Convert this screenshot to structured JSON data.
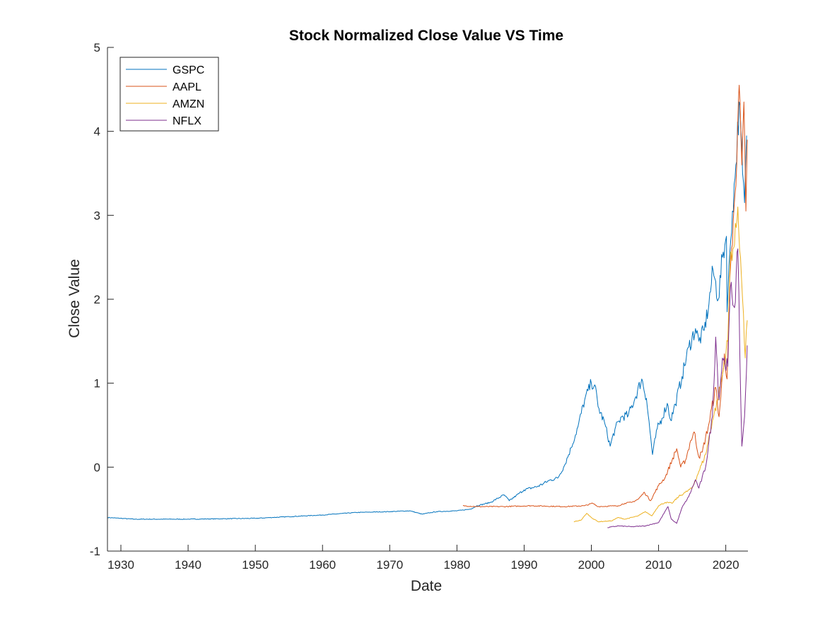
{
  "chart_data": {
    "type": "line",
    "title": "Stock Normalized Close Value VS Time",
    "xlabel": "Date",
    "ylabel": "Close Value",
    "xlim": [
      1928,
      2023.3
    ],
    "ylim": [
      -1,
      5
    ],
    "x_ticks": [
      1930,
      1940,
      1950,
      1960,
      1970,
      1980,
      1990,
      2000,
      2010,
      2020
    ],
    "y_ticks": [
      -1,
      0,
      1,
      2,
      3,
      4,
      5
    ],
    "grid": false,
    "legend_position": "top-left",
    "series": [
      {
        "name": "GSPC",
        "color": "#0072BD",
        "points": [
          [
            1928.0,
            -0.6
          ],
          [
            1932,
            -0.62
          ],
          [
            1940,
            -0.62
          ],
          [
            1950,
            -0.61
          ],
          [
            1955,
            -0.59
          ],
          [
            1960,
            -0.57
          ],
          [
            1965,
            -0.54
          ],
          [
            1970,
            -0.53
          ],
          [
            1973,
            -0.52
          ],
          [
            1974.8,
            -0.56
          ],
          [
            1977,
            -0.53
          ],
          [
            1980,
            -0.52
          ],
          [
            1982,
            -0.5
          ],
          [
            1983,
            -0.46
          ],
          [
            1985,
            -0.42
          ],
          [
            1987,
            -0.33
          ],
          [
            1987.8,
            -0.4
          ],
          [
            1990,
            -0.27
          ],
          [
            1992,
            -0.23
          ],
          [
            1994,
            -0.15
          ],
          [
            1995,
            -0.13
          ],
          [
            1996,
            0.02
          ],
          [
            1997,
            0.23
          ],
          [
            1998,
            0.48
          ],
          [
            1999,
            0.8
          ],
          [
            2000,
            1.0
          ],
          [
            2000.5,
            0.98
          ],
          [
            2001,
            0.72
          ],
          [
            2002,
            0.52
          ],
          [
            2002.8,
            0.25
          ],
          [
            2003.5,
            0.45
          ],
          [
            2004.5,
            0.6
          ],
          [
            2005.5,
            0.62
          ],
          [
            2006.5,
            0.82
          ],
          [
            2007.5,
            1.05
          ],
          [
            2008.2,
            0.82
          ],
          [
            2009.1,
            0.15
          ],
          [
            2009.8,
            0.46
          ],
          [
            2010.5,
            0.58
          ],
          [
            2011.3,
            0.76
          ],
          [
            2011.8,
            0.56
          ],
          [
            2012.5,
            0.75
          ],
          [
            2013.5,
            1.08
          ],
          [
            2014.5,
            1.43
          ],
          [
            2015.5,
            1.65
          ],
          [
            2016,
            1.5
          ],
          [
            2016.8,
            1.63
          ],
          [
            2017.5,
            1.95
          ],
          [
            2018.1,
            2.35
          ],
          [
            2018.9,
            2.0
          ],
          [
            2019.5,
            2.5
          ],
          [
            2020.1,
            2.75
          ],
          [
            2020.2,
            1.85
          ],
          [
            2020.6,
            2.55
          ],
          [
            2021,
            3.05
          ],
          [
            2021.5,
            3.6
          ],
          [
            2022,
            4.35
          ],
          [
            2022.5,
            3.5
          ],
          [
            2022.8,
            3.15
          ],
          [
            2023.1,
            3.95
          ]
        ]
      },
      {
        "name": "AAPL",
        "color": "#D95319",
        "points": [
          [
            1980.9,
            -0.46
          ],
          [
            1983,
            -0.47
          ],
          [
            1987,
            -0.47
          ],
          [
            1991,
            -0.46
          ],
          [
            1996,
            -0.47
          ],
          [
            1999,
            -0.46
          ],
          [
            2000.2,
            -0.43
          ],
          [
            2001,
            -0.47
          ],
          [
            2004,
            -0.46
          ],
          [
            2005,
            -0.43
          ],
          [
            2006,
            -0.42
          ],
          [
            2007,
            -0.38
          ],
          [
            2007.9,
            -0.3
          ],
          [
            2008.8,
            -0.4
          ],
          [
            2010,
            -0.22
          ],
          [
            2011,
            -0.12
          ],
          [
            2012,
            0.08
          ],
          [
            2012.7,
            0.22
          ],
          [
            2013.3,
            0.0
          ],
          [
            2014,
            0.08
          ],
          [
            2014.8,
            0.32
          ],
          [
            2015.3,
            0.42
          ],
          [
            2016,
            0.12
          ],
          [
            2016.5,
            0.18
          ],
          [
            2017.5,
            0.52
          ],
          [
            2018.5,
            0.95
          ],
          [
            2019,
            0.6
          ],
          [
            2019.8,
            1.35
          ],
          [
            2020.2,
            1.05
          ],
          [
            2020.6,
            2.25
          ],
          [
            2021,
            2.65
          ],
          [
            2021.5,
            3.35
          ],
          [
            2022,
            4.55
          ],
          [
            2022.4,
            3.6
          ],
          [
            2022.7,
            4.35
          ],
          [
            2023,
            3.05
          ],
          [
            2023.2,
            3.9
          ]
        ]
      },
      {
        "name": "AMZN",
        "color": "#EDB120",
        "points": [
          [
            1997.4,
            -0.65
          ],
          [
            1998.5,
            -0.63
          ],
          [
            1999.3,
            -0.55
          ],
          [
            2000,
            -0.6
          ],
          [
            2001,
            -0.65
          ],
          [
            2003,
            -0.64
          ],
          [
            2004,
            -0.6
          ],
          [
            2005,
            -0.62
          ],
          [
            2007,
            -0.58
          ],
          [
            2008,
            -0.53
          ],
          [
            2009,
            -0.58
          ],
          [
            2010,
            -0.46
          ],
          [
            2011,
            -0.42
          ],
          [
            2012,
            -0.43
          ],
          [
            2013,
            -0.35
          ],
          [
            2014,
            -0.3
          ],
          [
            2015,
            -0.25
          ],
          [
            2016,
            -0.05
          ],
          [
            2017,
            0.15
          ],
          [
            2018,
            0.55
          ],
          [
            2018.8,
            0.8
          ],
          [
            2019.5,
            1.1
          ],
          [
            2020.3,
            1.5
          ],
          [
            2020.7,
            2.55
          ],
          [
            2021.3,
            2.65
          ],
          [
            2021.8,
            3.1
          ],
          [
            2022.2,
            2.5
          ],
          [
            2022.5,
            2.0
          ],
          [
            2022.9,
            1.3
          ],
          [
            2023.2,
            1.75
          ]
        ]
      },
      {
        "name": "NFLX",
        "color": "#7E2F8E",
        "points": [
          [
            2002.4,
            -0.72
          ],
          [
            2004,
            -0.7
          ],
          [
            2006,
            -0.71
          ],
          [
            2008,
            -0.7
          ],
          [
            2010,
            -0.66
          ],
          [
            2011.4,
            -0.47
          ],
          [
            2011.9,
            -0.62
          ],
          [
            2012.7,
            -0.67
          ],
          [
            2013.5,
            -0.48
          ],
          [
            2014.5,
            -0.35
          ],
          [
            2015.5,
            -0.15
          ],
          [
            2016,
            -0.25
          ],
          [
            2017,
            0.0
          ],
          [
            2018,
            0.6
          ],
          [
            2018.5,
            1.55
          ],
          [
            2019,
            0.8
          ],
          [
            2019.5,
            1.3
          ],
          [
            2020.3,
            1.2
          ],
          [
            2020.7,
            2.15
          ],
          [
            2021.3,
            1.9
          ],
          [
            2021.8,
            2.6
          ],
          [
            2022.1,
            1.3
          ],
          [
            2022.4,
            0.25
          ],
          [
            2022.8,
            0.6
          ],
          [
            2023.2,
            1.45
          ]
        ]
      }
    ]
  }
}
